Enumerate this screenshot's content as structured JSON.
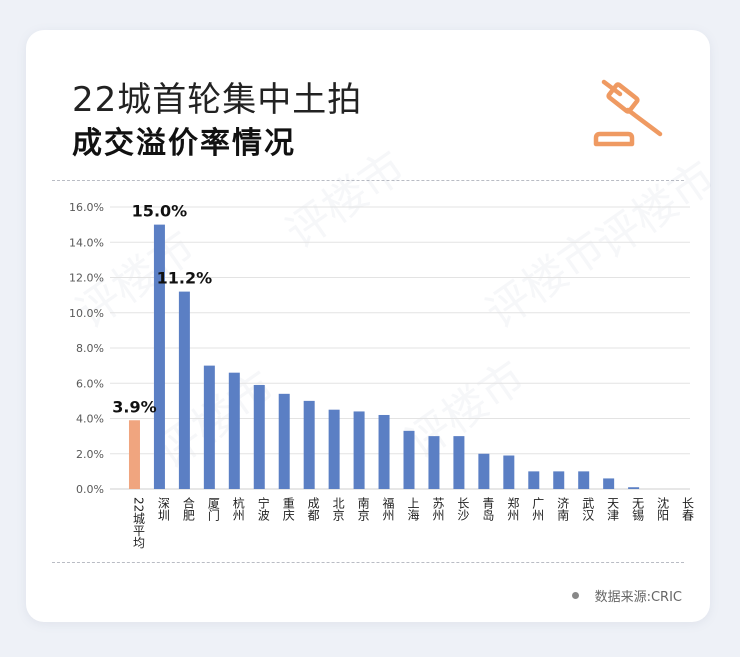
{
  "header": {
    "title_line1": "22城首轮集中土拍",
    "title_line2": "成交溢价率情况"
  },
  "source": {
    "text": "数据来源:CRIC"
  },
  "watermark": {
    "text": "评楼市"
  },
  "icons": {
    "gavel": "gavel-icon"
  },
  "colors": {
    "bar": "#5b7fc4",
    "highlight": "#f0a57f",
    "accent": "#ef9a62",
    "grid": "#e3e3e3"
  },
  "chart_data": {
    "type": "bar",
    "categories": [
      "22城平均",
      "深圳",
      "合肥",
      "厦门",
      "杭州",
      "宁波",
      "重庆",
      "成都",
      "北京",
      "南京",
      "福州",
      "上海",
      "苏州",
      "长沙",
      "青岛",
      "郑州",
      "广州",
      "济南",
      "武汉",
      "天津",
      "无锡",
      "沈阳",
      "长春"
    ],
    "values": [
      3.9,
      15.0,
      11.2,
      7.0,
      6.6,
      5.9,
      5.4,
      5.0,
      4.5,
      4.4,
      4.2,
      3.3,
      3.0,
      3.0,
      2.0,
      1.9,
      1.0,
      1.0,
      1.0,
      0.6,
      0.1,
      0.0,
      0.0
    ],
    "highlight_index": 0,
    "data_labels": [
      {
        "index": 0,
        "text": "3.9%"
      },
      {
        "index": 1,
        "text": "15.0%"
      },
      {
        "index": 2,
        "text": "11.2%"
      }
    ],
    "yticks": [
      "0.0%",
      "2.0%",
      "4.0%",
      "6.0%",
      "8.0%",
      "10.0%",
      "12.0%",
      "14.0%",
      "16.0%"
    ],
    "ylim": [
      0,
      16
    ],
    "grid": true
  }
}
